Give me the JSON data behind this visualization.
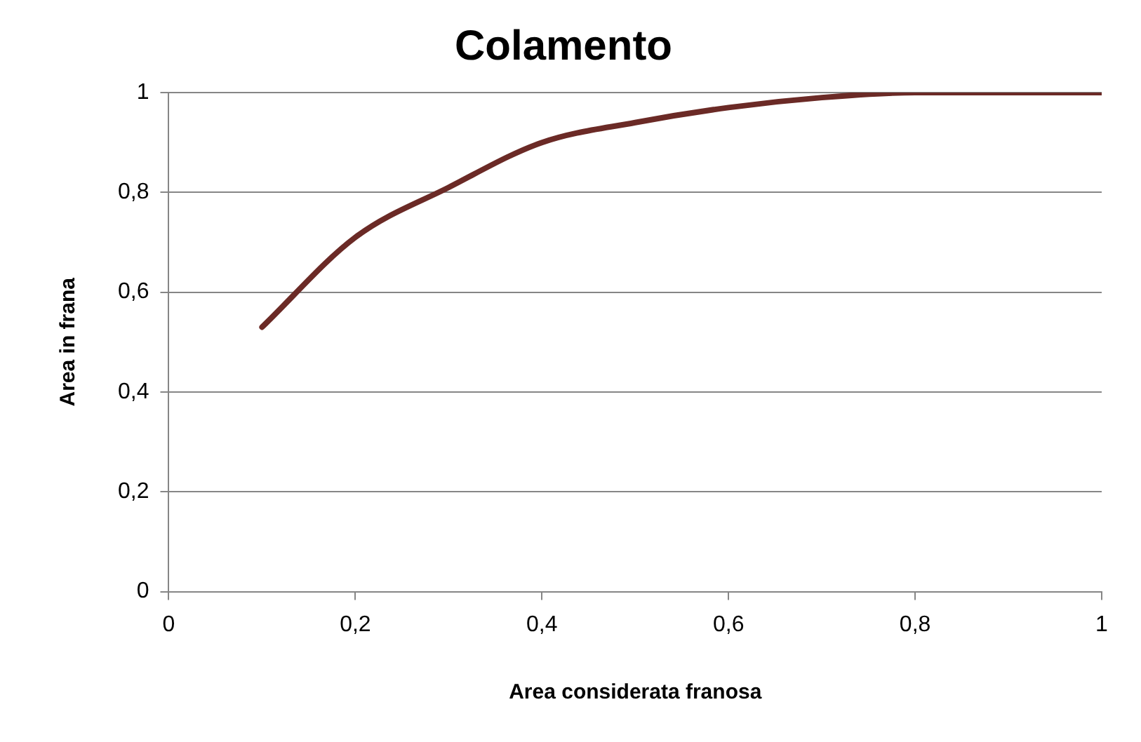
{
  "chart_data": {
    "type": "line",
    "title": "Colamento",
    "xlabel": "Area considerata franosa",
    "ylabel": "Area in frana",
    "x": [
      0.1,
      0.2,
      0.3,
      0.4,
      0.5,
      0.6,
      0.7,
      0.8,
      0.9,
      1
    ],
    "series": [
      {
        "color": "#6b2a26",
        "values": [
          0.53,
          0.71,
          0.81,
          0.9,
          0.94,
          0.97,
          0.99,
          1,
          1,
          1
        ]
      }
    ],
    "xlim": [
      0,
      1
    ],
    "ylim": [
      0,
      1
    ],
    "xticks": [
      0,
      {
        "value": 0.2,
        "label": "0,2"
      },
      {
        "value": 0.4,
        "label": "0,4"
      },
      {
        "value": 0.6,
        "label": "0,6"
      },
      {
        "value": 0.8,
        "label": "0,8"
      },
      1
    ],
    "yticks": [
      0,
      {
        "value": 0.2,
        "label": "0,2"
      },
      {
        "value": 0.4,
        "label": "0,4"
      },
      {
        "value": 0.6,
        "label": "0,6"
      },
      {
        "value": 0.8,
        "label": "0,8"
      },
      1
    ],
    "grid": "y",
    "legend": false,
    "marker": "none"
  }
}
